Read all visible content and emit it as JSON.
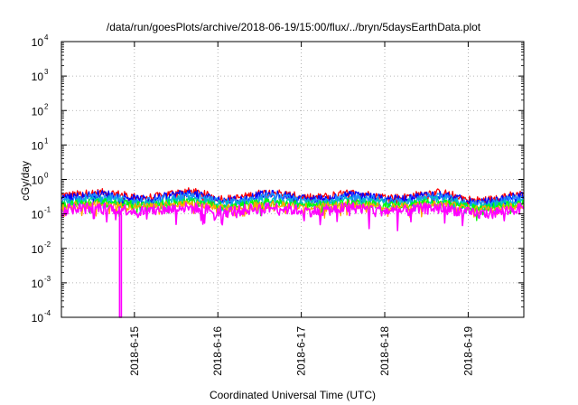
{
  "chart_data": {
    "type": "line",
    "title": "/data/run/goesPlots/archive/2018-06-19/15:00/flux/../bryn/5daysEarthData.plot",
    "xlabel": "Coordinated Universal Time (UTC)",
    "ylabel": "cGy/day",
    "yscale": "log",
    "ylim": [
      0.0001,
      10000
    ],
    "xlim": [
      "2018-06-14T03:00",
      "2018-06-19T16:00"
    ],
    "grid": true,
    "x_ticks": [
      "2018-6-15",
      "2018-6-16",
      "2018-6-17",
      "2018-6-18",
      "2018-6-19"
    ],
    "y_ticks": [
      {
        "base": "10",
        "exp": "-4"
      },
      {
        "base": "10",
        "exp": "-3"
      },
      {
        "base": "10",
        "exp": "-2"
      },
      {
        "base": "10",
        "exp": "-1"
      },
      {
        "base": "10",
        "exp": "0"
      },
      {
        "base": "10",
        "exp": "1"
      },
      {
        "base": "10",
        "exp": "2"
      },
      {
        "base": "10",
        "exp": "3"
      },
      {
        "base": "10",
        "exp": "4"
      }
    ],
    "x": [
      "2018-06-14T03:00",
      "2018-06-14T15:00",
      "2018-06-15T03:00",
      "2018-06-15T15:00",
      "2018-06-16T03:00",
      "2018-06-16T15:00",
      "2018-06-17T03:00",
      "2018-06-17T15:00",
      "2018-06-18T03:00",
      "2018-06-18T15:00",
      "2018-06-19T03:00",
      "2018-06-19T16:00"
    ],
    "series": [
      {
        "color": "#ff0000",
        "values": [
          0.35,
          0.42,
          0.3,
          0.45,
          0.28,
          0.42,
          0.3,
          0.4,
          0.3,
          0.42,
          0.25,
          0.38
        ]
      },
      {
        "color": "#0000ff",
        "values": [
          0.3,
          0.38,
          0.27,
          0.4,
          0.25,
          0.38,
          0.27,
          0.36,
          0.27,
          0.38,
          0.22,
          0.34
        ]
      },
      {
        "color": "#1e90ff",
        "values": [
          0.26,
          0.32,
          0.23,
          0.34,
          0.22,
          0.32,
          0.23,
          0.31,
          0.23,
          0.32,
          0.19,
          0.29
        ]
      },
      {
        "color": "#00c0c0",
        "values": [
          0.22,
          0.26,
          0.2,
          0.27,
          0.19,
          0.26,
          0.2,
          0.25,
          0.2,
          0.26,
          0.17,
          0.24
        ]
      },
      {
        "color": "#00ff00",
        "values": [
          0.19,
          0.22,
          0.18,
          0.22,
          0.17,
          0.22,
          0.18,
          0.21,
          0.18,
          0.22,
          0.15,
          0.2
        ]
      },
      {
        "color": "#ffa500",
        "values": [
          0.17,
          0.19,
          0.16,
          0.19,
          0.15,
          0.19,
          0.16,
          0.18,
          0.16,
          0.19,
          0.14,
          0.18
        ]
      },
      {
        "color": "#ff00ff",
        "values": [
          0.14,
          0.15,
          0.12,
          0.15,
          0.12,
          0.15,
          0.12,
          0.15,
          0.12,
          0.15,
          0.1,
          0.14
        ]
      }
    ],
    "dropout": {
      "x": "2018-06-14T20:00",
      "value": 0.0001
    }
  }
}
